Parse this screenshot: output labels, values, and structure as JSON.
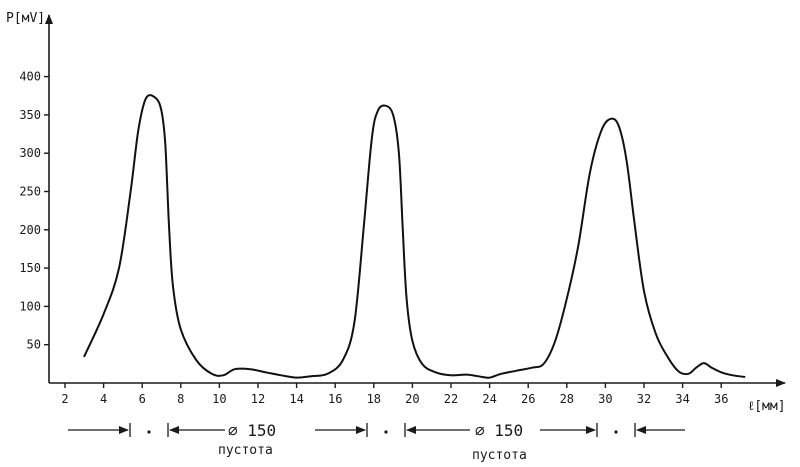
{
  "chart_data": {
    "type": "line",
    "title": "",
    "ylabel": "P[мV]",
    "xlabel": "ℓ[мм]",
    "xlim": [
      1.5,
      39
    ],
    "ylim": [
      0,
      430
    ],
    "grid": false,
    "x_ticks": [
      2,
      4,
      6,
      8,
      10,
      12,
      14,
      16,
      18,
      20,
      22,
      24,
      26,
      28,
      30,
      32,
      34,
      36
    ],
    "x_tick_labels": [
      "2",
      "4",
      "6",
      "8",
      "10",
      "12",
      "14",
      "16",
      "18",
      "20",
      "22",
      "24",
      "26",
      "28",
      "30",
      "32",
      "34",
      "36"
    ],
    "y_ticks": [
      50,
      100,
      150,
      200,
      250,
      300,
      350,
      400
    ],
    "y_tick_labels": [
      "50",
      "100",
      "150",
      "200",
      "250",
      "300",
      "350",
      "400"
    ],
    "series": [
      {
        "x": [
          3.0,
          4.0,
          4.8,
          5.4,
          5.8,
          6.2,
          6.7,
          7.0,
          7.2,
          7.4,
          7.6,
          8.0,
          8.8,
          9.6,
          10.2,
          10.8,
          11.6,
          12.4,
          13.2,
          14.0,
          14.8,
          15.6,
          16.4,
          17.0,
          17.5,
          17.9,
          18.2,
          18.6,
          19.0,
          19.3,
          19.5,
          19.7,
          20.0,
          20.5,
          21.2,
          22.0,
          22.8,
          23.6,
          24.0,
          24.6,
          25.4,
          26.2,
          26.8,
          27.4,
          28.0,
          28.6,
          29.2,
          29.8,
          30.3,
          30.7,
          31.1,
          31.5,
          32.0,
          32.6,
          33.2,
          33.8,
          34.3,
          34.7,
          35.1,
          35.5,
          36.0,
          36.6,
          37.2
        ],
        "y": [
          35,
          90,
          150,
          250,
          330,
          372,
          372,
          355,
          310,
          200,
          125,
          70,
          30,
          12,
          10,
          18,
          18,
          14,
          10,
          7,
          9,
          12,
          30,
          80,
          210,
          320,
          355,
          362,
          350,
          300,
          200,
          110,
          55,
          25,
          14,
          10,
          11,
          8,
          7,
          12,
          16,
          20,
          25,
          55,
          110,
          180,
          275,
          330,
          345,
          335,
          290,
          210,
          120,
          65,
          35,
          15,
          12,
          20,
          26,
          20,
          14,
          10,
          8
        ]
      }
    ],
    "annotations": {
      "diameter_labels": [
        "⌀ 150",
        "⌀ 150"
      ],
      "captions": [
        "пустота",
        "пустота"
      ]
    }
  }
}
